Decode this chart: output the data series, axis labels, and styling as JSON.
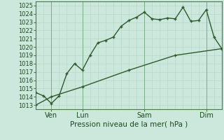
{
  "title": "",
  "xlabel": "Pression niveau de la mer( hPa )",
  "ylim": [
    1012.5,
    1025.5
  ],
  "xlim": [
    0,
    72
  ],
  "background_color": "#cce8dc",
  "grid_color_minor": "#b8d8c8",
  "grid_color_major": "#a0c0b0",
  "line_color": "#2d5a2d",
  "xtick_positions": [
    6,
    18,
    42,
    66
  ],
  "xtick_labels": [
    "Ven",
    "Lun",
    "Sam",
    "Dim"
  ],
  "ytick_positions": [
    1013,
    1014,
    1015,
    1016,
    1017,
    1018,
    1019,
    1020,
    1021,
    1022,
    1023,
    1024,
    1025
  ],
  "vline_positions": [
    6,
    18,
    42,
    66
  ],
  "line1_x": [
    0,
    3,
    6,
    9,
    12,
    15,
    18,
    21,
    24,
    27,
    30,
    33,
    36,
    39,
    42,
    45,
    48,
    51,
    54,
    57,
    60,
    63,
    66,
    69,
    72
  ],
  "line1_y": [
    1014.5,
    1014.1,
    1013.2,
    1014.1,
    1016.8,
    1018.0,
    1017.2,
    1019.0,
    1020.5,
    1020.8,
    1021.2,
    1022.5,
    1023.2,
    1023.6,
    1024.2,
    1023.4,
    1023.3,
    1023.5,
    1023.4,
    1024.8,
    1023.1,
    1023.2,
    1024.5,
    1021.2,
    1019.8
  ],
  "line2_x": [
    0,
    6,
    18,
    36,
    54,
    72
  ],
  "line2_y": [
    1013.0,
    1014.0,
    1015.2,
    1017.2,
    1019.0,
    1019.8
  ],
  "fontsize_tick": 6,
  "fontsize_xlabel": 7.5
}
